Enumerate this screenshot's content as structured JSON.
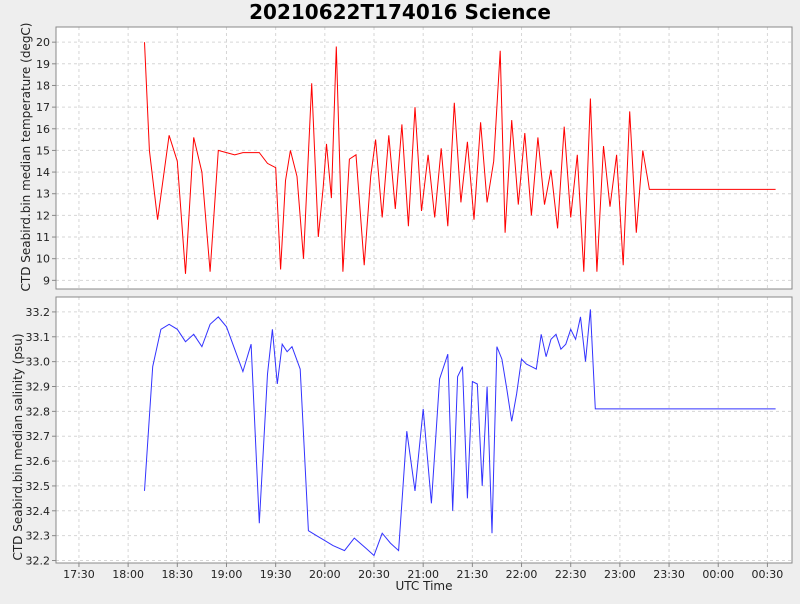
{
  "title": "20210622T174016 Science",
  "chart_data": [
    {
      "type": "line",
      "title": "20210622T174016 Science",
      "xlabel": "UTC Time",
      "ylabel": "CTD Seabird.bin median temperature (degC)",
      "color": "#ff0000",
      "ylim": [
        8.6,
        20.7
      ],
      "yticks": [
        9,
        10,
        11,
        12,
        13,
        14,
        15,
        16,
        17,
        18,
        19,
        20
      ],
      "grid": true,
      "series": [
        {
          "x": [
            "18:10",
            "18:13",
            "18:18",
            "18:25",
            "18:30",
            "18:35",
            "18:40",
            "18:45",
            "18:50",
            "18:55",
            "19:00",
            "19:05",
            "19:10",
            "19:15",
            "19:20",
            "19:25",
            "19:30",
            "19:33",
            "19:36",
            "19:39",
            "19:43",
            "19:47",
            "19:52",
            "19:56",
            "19:59",
            "20:01",
            "20:04",
            "20:07",
            "20:11",
            "20:15",
            "20:19",
            "20:24",
            "20:28",
            "20:31",
            "20:35",
            "20:39",
            "20:43",
            "20:47",
            "20:51",
            "20:55",
            "20:59",
            "21:03",
            "21:07",
            "21:11",
            "21:15",
            "21:19",
            "21:23",
            "21:27",
            "21:31",
            "21:35",
            "21:39",
            "21:43",
            "21:47",
            "21:50",
            "21:54",
            "21:58",
            "22:02",
            "22:06",
            "22:10",
            "22:14",
            "22:18",
            "22:22",
            "22:26",
            "22:30",
            "22:34",
            "22:38",
            "22:42",
            "22:46",
            "22:50",
            "22:54",
            "22:58",
            "23:02",
            "23:06",
            "23:10",
            "23:14",
            "23:18",
            "23:22",
            "23:26",
            "23:30",
            "23:34",
            "23:38",
            "23:42",
            "23:46",
            "23:49",
            "23:52",
            "23:55",
            "23:58",
            "00:01",
            "00:04",
            "00:07",
            "00:10",
            "00:13",
            "00:16",
            "00:20",
            "00:25",
            "00:30",
            "00:35"
          ],
          "y": [
            20.0,
            15.0,
            11.8,
            15.7,
            14.5,
            9.3,
            15.6,
            14.0,
            9.4,
            15.0,
            14.9,
            14.8,
            14.9,
            14.9,
            14.9,
            14.4,
            14.2,
            9.5,
            13.6,
            15.0,
            13.8,
            10.0,
            18.1,
            11.0,
            13.3,
            15.3,
            12.8,
            19.8,
            9.4,
            14.6,
            14.8,
            9.7,
            13.8,
            15.5,
            11.9,
            15.7,
            12.3,
            16.2,
            11.5,
            17.0,
            12.2,
            14.8,
            11.9,
            15.1,
            11.5,
            17.2,
            12.6,
            15.4,
            11.8,
            16.3,
            12.6,
            14.5,
            19.6,
            11.2,
            16.4,
            12.5,
            15.8,
            12.0,
            15.6,
            12.5,
            14.1,
            11.4,
            16.1,
            11.9,
            14.8,
            9.4,
            17.4,
            9.4,
            15.2,
            12.4,
            14.8,
            9.7,
            16.8,
            11.2,
            15.0,
            13.2,
            13.2,
            13.2,
            13.2,
            13.2,
            13.2,
            13.2,
            13.2,
            13.2,
            13.2,
            13.2,
            13.2,
            13.2,
            13.2,
            13.2,
            13.2,
            13.2,
            13.2,
            13.2,
            13.2,
            13.2,
            13.2
          ]
        }
      ]
    },
    {
      "type": "line",
      "xlabel": "UTC Time",
      "ylabel": "CTD Seabird.bin median salinity (psu)",
      "color": "#3333ff",
      "ylim": [
        32.19,
        33.26
      ],
      "yticks": [
        32.2,
        32.3,
        32.4,
        32.5,
        32.6,
        32.7,
        32.8,
        32.9,
        33.0,
        33.1,
        33.2
      ],
      "grid": true,
      "series": [
        {
          "x": [
            "18:10",
            "18:15",
            "18:20",
            "18:25",
            "18:30",
            "18:35",
            "18:40",
            "18:45",
            "18:50",
            "18:55",
            "19:00",
            "19:05",
            "19:10",
            "19:15",
            "19:20",
            "19:25",
            "19:28",
            "19:31",
            "19:34",
            "19:37",
            "19:40",
            "19:45",
            "19:50",
            "19:55",
            "20:00",
            "20:05",
            "20:12",
            "20:18",
            "20:25",
            "20:30",
            "20:35",
            "20:40",
            "20:45",
            "20:50",
            "20:55",
            "21:00",
            "21:05",
            "21:10",
            "21:15",
            "21:18",
            "21:21",
            "21:24",
            "21:27",
            "21:30",
            "21:33",
            "21:36",
            "21:39",
            "21:42",
            "21:45",
            "21:48",
            "21:51",
            "21:54",
            "21:57",
            "22:00",
            "22:03",
            "22:06",
            "22:09",
            "22:12",
            "22:15",
            "22:18",
            "22:21",
            "22:24",
            "22:27",
            "22:30",
            "22:33",
            "22:36",
            "22:39",
            "22:42",
            "22:45",
            "22:48",
            "22:51",
            "22:54",
            "22:57",
            "23:00",
            "23:05",
            "23:10",
            "23:15",
            "23:20",
            "23:25",
            "23:30",
            "23:35",
            "23:40",
            "23:45",
            "23:50",
            "23:55",
            "24:00",
            "24:05",
            "24:10",
            "24:15",
            "24:20",
            "24:25",
            "24:30",
            "24:35"
          ],
          "y": [
            32.48,
            32.98,
            33.13,
            33.15,
            33.13,
            33.08,
            33.11,
            33.06,
            33.15,
            33.18,
            33.14,
            33.05,
            32.96,
            33.07,
            32.35,
            32.95,
            33.13,
            32.91,
            33.07,
            33.04,
            33.06,
            32.97,
            32.32,
            32.3,
            32.28,
            32.26,
            32.24,
            32.29,
            32.25,
            32.22,
            32.31,
            32.27,
            32.24,
            32.72,
            32.48,
            32.81,
            32.43,
            32.93,
            33.03,
            32.4,
            32.94,
            32.98,
            32.45,
            32.92,
            32.91,
            32.5,
            32.9,
            32.31,
            33.06,
            33.01,
            32.89,
            32.76,
            32.87,
            33.01,
            32.99,
            32.98,
            32.97,
            33.11,
            33.02,
            33.09,
            33.11,
            33.05,
            33.07,
            33.13,
            33.09,
            33.18,
            33.0,
            33.21,
            32.81,
            32.81,
            32.81,
            32.81,
            32.81,
            32.81,
            32.81,
            32.81,
            32.81,
            32.81,
            32.81,
            32.81,
            32.81,
            32.81,
            32.81,
            32.81,
            32.81,
            32.81,
            32.81,
            32.81,
            32.81,
            32.81,
            32.81,
            32.81,
            32.81
          ]
        }
      ],
      "xticks": [
        "17:30",
        "18:00",
        "18:30",
        "19:00",
        "19:30",
        "20:00",
        "20:30",
        "21:00",
        "21:30",
        "22:00",
        "22:30",
        "23:00",
        "23:30",
        "00:00",
        "00:30"
      ]
    }
  ]
}
